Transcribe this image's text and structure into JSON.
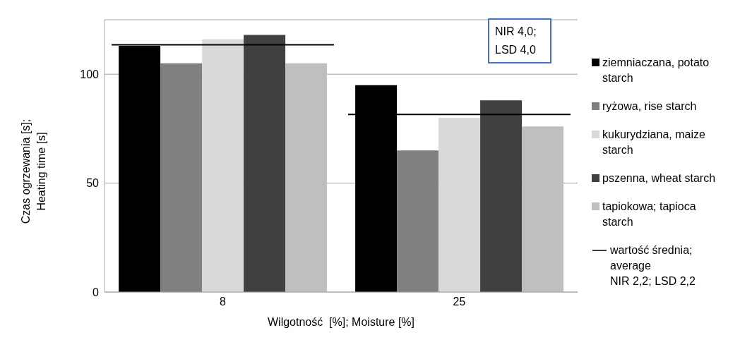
{
  "chart_data": {
    "type": "bar",
    "xlabel": "Wilgotność  [%]; Moisture [%]",
    "ylabel": "Czas ogrzewania [s]; Heating time [s]",
    "categories": [
      "8",
      "25"
    ],
    "series": [
      {
        "name": "ziemniaczana, potato starch",
        "color": "#000000",
        "values": [
          113,
          95
        ]
      },
      {
        "name": "ryżowa, rise starch",
        "color": "#808080",
        "values": [
          105,
          65
        ]
      },
      {
        "name": "kukurydziana, maize starch",
        "color": "#d9d9d9",
        "values": [
          116,
          80
        ]
      },
      {
        "name": "pszenna, wheat starch",
        "color": "#404040",
        "values": [
          118,
          88
        ]
      },
      {
        "name": "tapiokowa; tapioca starch",
        "color": "#bfbfbf",
        "values": [
          105,
          76
        ]
      }
    ],
    "ref_lines": [
      {
        "axis": "y",
        "value": 113.5,
        "label": "wartość średnia; average",
        "color": "#000000",
        "line_style": "solid"
      },
      {
        "axis": "y",
        "value": 81.5,
        "color": "#000000",
        "line_style": "solid"
      }
    ],
    "ylim": [
      0,
      125
    ],
    "yticks": [
      0,
      50,
      100
    ],
    "grid": "y",
    "legend": "right",
    "annotations": [
      "NIR 4,0; LSD 4,0",
      "NIR 2,2; LSD 2,2"
    ]
  }
}
